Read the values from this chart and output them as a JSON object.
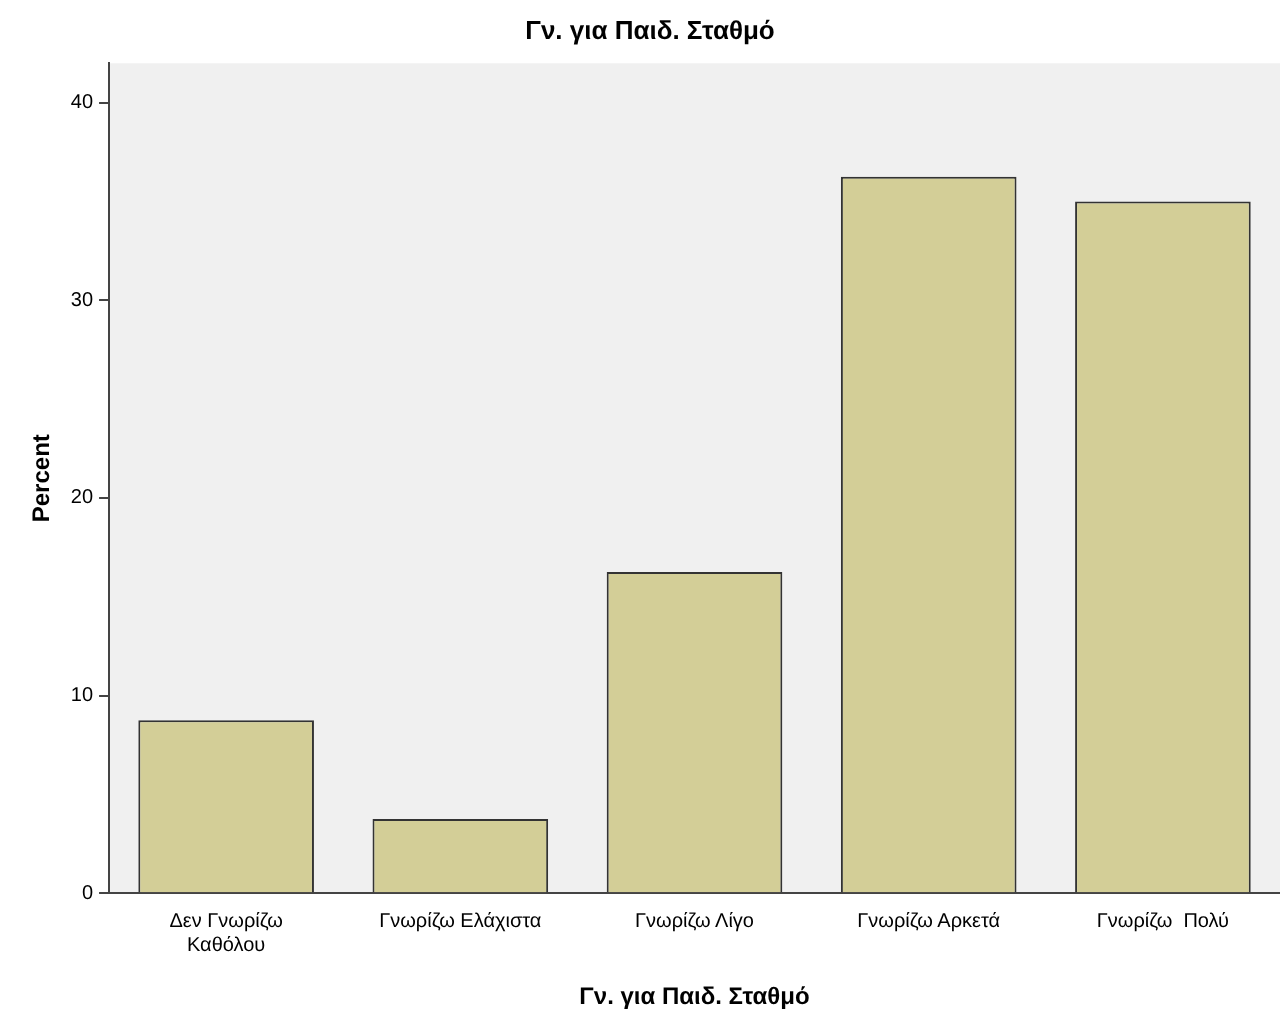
{
  "chart_data": {
    "type": "bar",
    "title": "Γν. για Παιδ. Σταθμό",
    "xlabel": "Γν. για Παιδ. Σταθμό",
    "ylabel": "Percent",
    "categories": [
      "Δεν Γνωρίζω Καθόλου",
      "Γνωρίζω Ελάχιστα",
      "Γνωρίζω Λίγο",
      "Γνωρίζω Αρκετά",
      "Γνωρίζω  Πολύ"
    ],
    "values": [
      8.75,
      3.75,
      16.25,
      36.25,
      35
    ],
    "color": "#d3ce97",
    "ylim": [
      0,
      42
    ],
    "yticks": [
      0,
      10,
      20,
      30,
      40
    ],
    "grid": false,
    "legend": false
  }
}
